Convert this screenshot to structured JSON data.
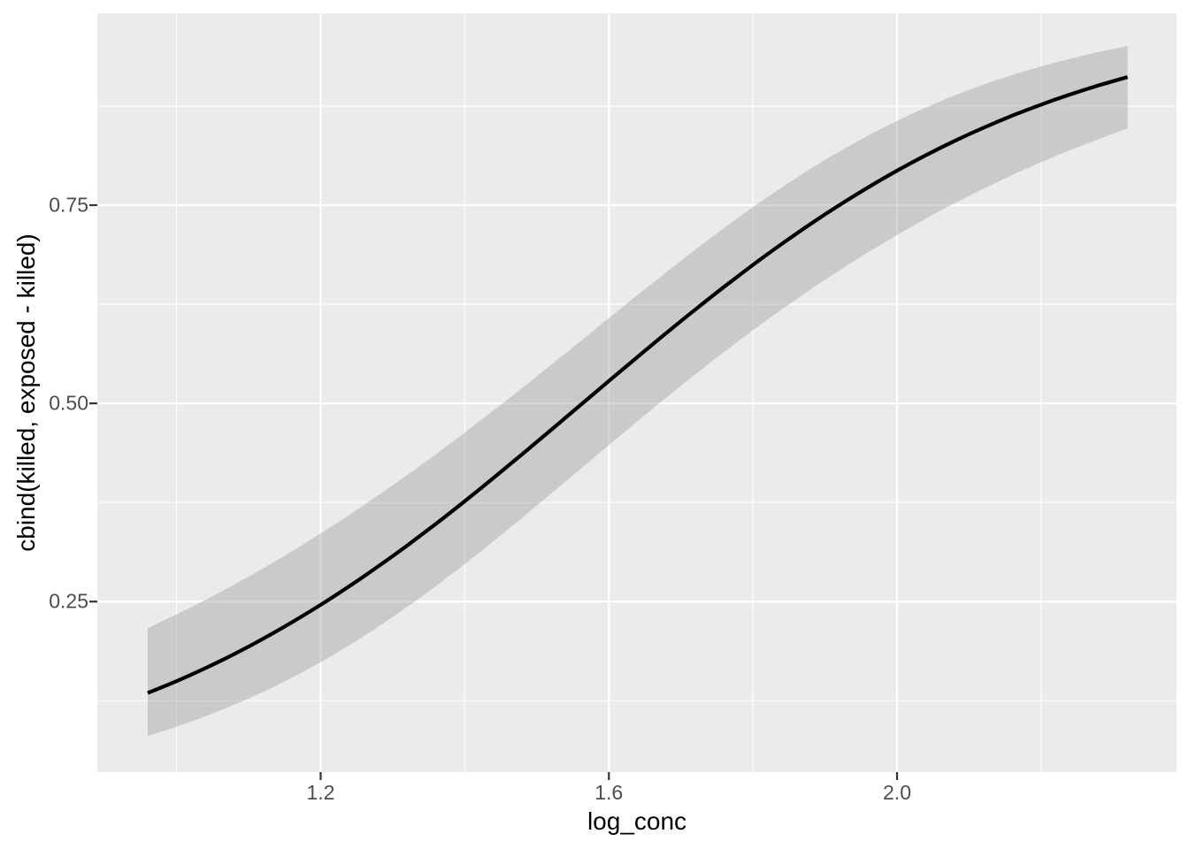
{
  "chart_data": {
    "type": "line",
    "title": "",
    "xlabel": "log_conc",
    "ylabel": "cbind(killed, exposed - killed)",
    "legend_position": "none",
    "grid": true,
    "x": [
      0.96,
      1.0,
      1.04,
      1.08,
      1.12,
      1.16,
      1.2,
      1.24,
      1.28,
      1.32,
      1.36,
      1.4,
      1.44,
      1.48,
      1.52,
      1.56,
      1.6,
      1.64,
      1.68,
      1.72,
      1.76,
      1.8,
      1.84,
      1.88,
      1.92,
      1.96,
      2.0,
      2.04,
      2.08,
      2.12,
      2.16,
      2.2,
      2.24,
      2.28,
      2.32
    ],
    "series": [
      {
        "name": "fitted-probability",
        "type": "line",
        "values": [
          0.1347,
          0.1497,
          0.1661,
          0.1838,
          0.2031,
          0.2238,
          0.2459,
          0.2695,
          0.2945,
          0.3207,
          0.3481,
          0.3766,
          0.406,
          0.4361,
          0.4666,
          0.4974,
          0.5282,
          0.5587,
          0.5889,
          0.6184,
          0.647,
          0.6747,
          0.7011,
          0.7263,
          0.7501,
          0.7725,
          0.7935,
          0.813,
          0.831,
          0.8476,
          0.8629,
          0.8768,
          0.8895,
          0.9011,
          0.9116
        ]
      },
      {
        "name": "confidence-ribbon",
        "type": "ribbon",
        "upper": [
          0.2166,
          0.2338,
          0.2521,
          0.2715,
          0.2919,
          0.3134,
          0.336,
          0.3595,
          0.3841,
          0.4095,
          0.4359,
          0.4632,
          0.4911,
          0.5196,
          0.5487,
          0.578,
          0.6075,
          0.6367,
          0.6656,
          0.6939,
          0.7213,
          0.7476,
          0.7724,
          0.7959,
          0.8177,
          0.8379,
          0.8563,
          0.8731,
          0.8883,
          0.902,
          0.9142,
          0.925,
          0.9346,
          0.9431,
          0.9506
        ],
        "lower": [
          0.0806,
          0.0922,
          0.1053,
          0.1199,
          0.1361,
          0.154,
          0.1737,
          0.1951,
          0.2184,
          0.2432,
          0.2696,
          0.2973,
          0.3262,
          0.356,
          0.3863,
          0.4168,
          0.4474,
          0.4777,
          0.5075,
          0.5367,
          0.5649,
          0.5922,
          0.6185,
          0.6437,
          0.6677,
          0.6907,
          0.7124,
          0.733,
          0.7524,
          0.7707,
          0.788,
          0.8042,
          0.8193,
          0.8334,
          0.8467
        ]
      }
    ],
    "x_axis": {
      "limits": [
        0.89,
        2.388
      ],
      "ticks": [
        {
          "value": 1.2,
          "label": "1.2"
        },
        {
          "value": 1.6,
          "label": "1.6"
        },
        {
          "value": 2.0,
          "label": "2.0"
        }
      ],
      "minor_breaks": [
        1.0,
        1.4,
        1.8,
        2.2
      ]
    },
    "y_axis": {
      "limits": [
        0.035,
        0.992
      ],
      "ticks": [
        {
          "value": 0.25,
          "label": "0.25"
        },
        {
          "value": 0.5,
          "label": "0.50"
        },
        {
          "value": 0.75,
          "label": "0.75"
        }
      ],
      "minor_breaks": [
        0.125,
        0.375,
        0.625,
        0.875
      ]
    },
    "theme": {
      "outer_background": "#FFFFFF",
      "panel_background": "#EBEBEB",
      "grid_major_color": "#FFFFFF",
      "grid_minor_color": "#FFFFFF",
      "line_color": "#000000",
      "ribbon_color": "#999999",
      "ribbon_opacity": 0.4,
      "tick_label_color": "#4D4D4D",
      "axis_title_color": "#000000",
      "tick_mark_color": "#333333"
    }
  }
}
